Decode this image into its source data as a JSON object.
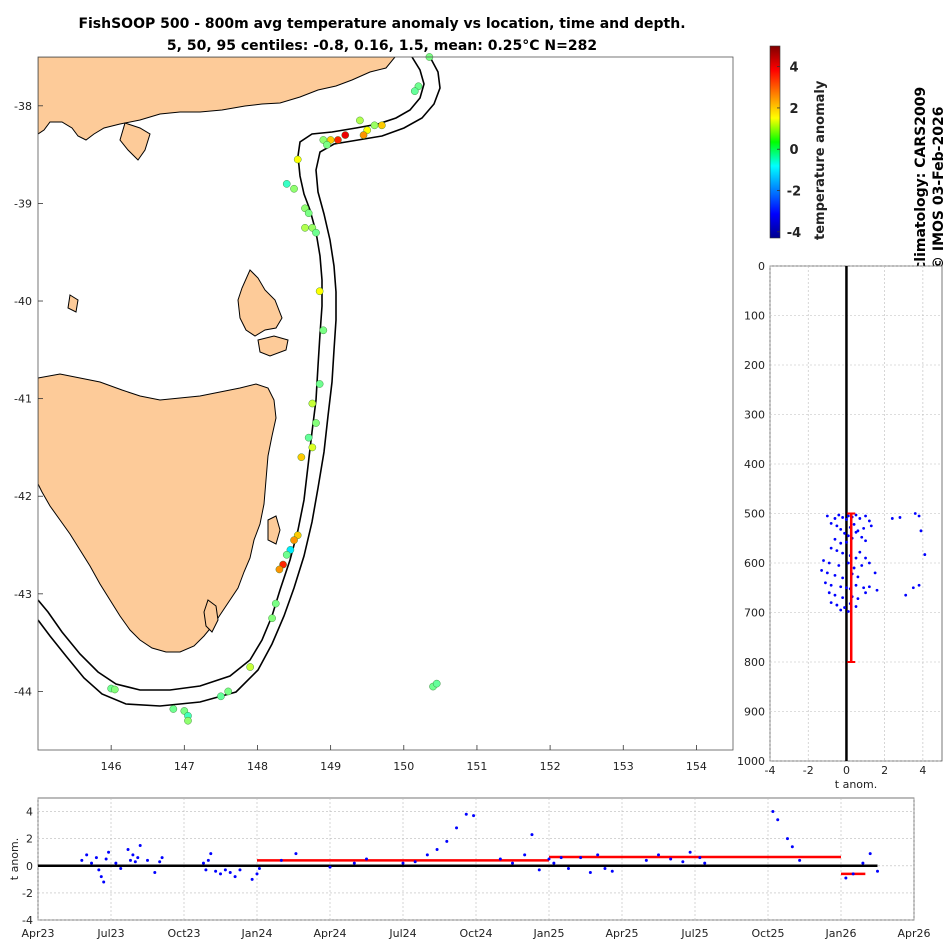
{
  "title": {
    "line1": "FishSOOP 500 - 800m avg temperature anomaly vs location, time and depth.",
    "line2": "5, 50, 95 centiles: -0.8, 0.16, 1.5, mean: 0.25°C N=282"
  },
  "side_text": {
    "climatology": "climatology: CARS2009",
    "copyright": "© IMOS 03-Feb-2026"
  },
  "colorbar": {
    "label": "temperature anomaly",
    "range": [
      -4.3,
      5
    ],
    "ticks": [
      "4",
      "2",
      "0",
      "-2",
      "-4"
    ],
    "tick_values": [
      4,
      2,
      0,
      -2,
      -4
    ]
  },
  "chart_data": [
    {
      "type": "scatter",
      "name": "map",
      "xlim": [
        145,
        154.5
      ],
      "ylim": [
        -44.6,
        -37.5
      ],
      "xticks": [
        "146",
        "147",
        "148",
        "149",
        "150",
        "151",
        "152",
        "153",
        "154"
      ],
      "xtick_values": [
        146,
        147,
        148,
        149,
        150,
        151,
        152,
        153,
        154
      ],
      "yticks": [
        "-38",
        "-39",
        "-40",
        "-41",
        "-42",
        "-43",
        "-44"
      ],
      "ytick_values": [
        -38,
        -39,
        -40,
        -41,
        -42,
        -43,
        -44
      ],
      "points": [
        [
          150.35,
          -37.5,
          0.3
        ],
        [
          150.2,
          -37.8,
          0.2
        ],
        [
          150.15,
          -37.85,
          0.1
        ],
        [
          149.7,
          -38.2,
          2.0
        ],
        [
          149.6,
          -38.2,
          0.6
        ],
        [
          149.5,
          -38.25,
          1.5
        ],
        [
          149.45,
          -38.3,
          2.5
        ],
        [
          149.4,
          -38.15,
          0.8
        ],
        [
          149.2,
          -38.3,
          4.0
        ],
        [
          149.1,
          -38.35,
          3.5
        ],
        [
          149.0,
          -38.35,
          2.0
        ],
        [
          148.9,
          -38.35,
          0.5
        ],
        [
          148.95,
          -38.4,
          0.3
        ],
        [
          148.55,
          -38.55,
          1.5
        ],
        [
          148.4,
          -38.8,
          -0.3
        ],
        [
          148.5,
          -38.85,
          0.5
        ],
        [
          148.65,
          -39.05,
          0.5
        ],
        [
          148.7,
          -39.1,
          0.3
        ],
        [
          148.75,
          -39.25,
          0.6
        ],
        [
          148.8,
          -39.3,
          0.2
        ],
        [
          148.65,
          -39.25,
          0.8
        ],
        [
          148.85,
          -39.9,
          1.5
        ],
        [
          148.9,
          -40.3,
          0.3
        ],
        [
          148.85,
          -40.85,
          0.2
        ],
        [
          148.75,
          -41.05,
          1.0
        ],
        [
          148.8,
          -41.25,
          0.4
        ],
        [
          148.7,
          -41.4,
          0.1
        ],
        [
          148.75,
          -41.5,
          1.2
        ],
        [
          148.6,
          -41.6,
          2.0
        ],
        [
          148.55,
          -42.4,
          2.0
        ],
        [
          148.5,
          -42.45,
          2.5
        ],
        [
          148.45,
          -42.55,
          -1.0
        ],
        [
          148.4,
          -42.6,
          0.2
        ],
        [
          148.35,
          -42.7,
          3.5
        ],
        [
          148.3,
          -42.75,
          2.5
        ],
        [
          148.25,
          -43.1,
          0.3
        ],
        [
          148.2,
          -43.25,
          0.4
        ],
        [
          147.9,
          -43.75,
          1.0
        ],
        [
          147.6,
          -44.0,
          0.3
        ],
        [
          147.5,
          -44.05,
          0.1
        ],
        [
          146.0,
          -43.97,
          0.2
        ],
        [
          146.05,
          -43.98,
          0.4
        ],
        [
          146.85,
          -44.18,
          0.2
        ],
        [
          147.0,
          -44.2,
          0.3
        ],
        [
          147.05,
          -44.25,
          -0.2
        ],
        [
          147.05,
          -44.3,
          0.5
        ],
        [
          150.4,
          -43.95,
          0.2
        ],
        [
          150.45,
          -43.92,
          0.1
        ]
      ]
    },
    {
      "type": "scatter",
      "name": "depth_profile",
      "xlabel": "t anom.",
      "xlim": [
        -4,
        5
      ],
      "ylim": [
        0,
        1000
      ],
      "xticks": [
        "-4",
        "-2",
        "0",
        "2",
        "4"
      ],
      "xtick_values": [
        -4,
        -2,
        0,
        2,
        4
      ],
      "yticks": [
        "0",
        "100",
        "200",
        "300",
        "400",
        "500",
        "600",
        "700",
        "800",
        "900",
        "1000"
      ],
      "ytick_values": [
        0,
        100,
        200,
        300,
        400,
        500,
        600,
        700,
        800,
        900,
        1000
      ],
      "mean_profile": {
        "x": 0.25,
        "depth_top": 500,
        "depth_bottom": 800
      },
      "points": [
        [
          -1.0,
          505
        ],
        [
          -0.6,
          510
        ],
        [
          -0.4,
          503
        ],
        [
          -0.2,
          508
        ],
        [
          0.0,
          512
        ],
        [
          0.1,
          505
        ],
        [
          0.3,
          507
        ],
        [
          0.5,
          503
        ],
        [
          0.7,
          510
        ],
        [
          1.0,
          505
        ],
        [
          1.2,
          515
        ],
        [
          -0.8,
          520
        ],
        [
          -0.5,
          525
        ],
        [
          -0.3,
          532
        ],
        [
          0.2,
          528
        ],
        [
          0.4,
          522
        ],
        [
          0.6,
          535
        ],
        [
          0.9,
          530
        ],
        [
          1.3,
          525
        ],
        [
          -0.1,
          540
        ],
        [
          0.1,
          545
        ],
        [
          0.3,
          550
        ],
        [
          0.5,
          538
        ],
        [
          0.8,
          548
        ],
        [
          -0.6,
          552
        ],
        [
          -0.3,
          560
        ],
        [
          1.0,
          555
        ],
        [
          0.0,
          558
        ],
        [
          2.4,
          510
        ],
        [
          2.8,
          508
        ],
        [
          3.6,
          500
        ],
        [
          3.8,
          505
        ],
        [
          3.9,
          535
        ],
        [
          4.1,
          583
        ],
        [
          -0.8,
          570
        ],
        [
          -0.5,
          575
        ],
        [
          -0.2,
          580
        ],
        [
          0.2,
          585
        ],
        [
          0.5,
          590
        ],
        [
          0.7,
          578
        ],
        [
          1.0,
          590
        ],
        [
          -1.2,
          595
        ],
        [
          -0.9,
          600
        ],
        [
          -0.4,
          605
        ],
        [
          0.1,
          600
        ],
        [
          0.4,
          610
        ],
        [
          0.8,
          605
        ],
        [
          1.2,
          600
        ],
        [
          -1.3,
          615
        ],
        [
          -1.0,
          620
        ],
        [
          -0.6,
          625
        ],
        [
          -0.2,
          630
        ],
        [
          0.3,
          622
        ],
        [
          0.6,
          628
        ],
        [
          1.5,
          620
        ],
        [
          -1.1,
          640
        ],
        [
          -0.8,
          645
        ],
        [
          -0.3,
          648
        ],
        [
          0.0,
          650
        ],
        [
          0.2,
          652
        ],
        [
          0.5,
          645
        ],
        [
          0.9,
          650
        ],
        [
          1.2,
          648
        ],
        [
          1.6,
          655
        ],
        [
          3.1,
          665
        ],
        [
          3.5,
          650
        ],
        [
          3.8,
          645
        ],
        [
          -0.9,
          660
        ],
        [
          -0.6,
          665
        ],
        [
          -0.2,
          670
        ],
        [
          0.3,
          668
        ],
        [
          0.6,
          672
        ],
        [
          1.0,
          660
        ],
        [
          -0.8,
          680
        ],
        [
          -0.5,
          685
        ],
        [
          -0.1,
          690
        ],
        [
          0.2,
          682
        ],
        [
          0.5,
          688
        ],
        [
          -0.3,
          695
        ],
        [
          0.1,
          698
        ]
      ]
    },
    {
      "type": "scatter",
      "name": "time_series",
      "ylabel": "t anom.",
      "xlim": [
        0,
        36
      ],
      "ylim": [
        -4,
        5
      ],
      "xticks": [
        "Apr23",
        "Jul23",
        "Oct23",
        "Jan24",
        "Apr24",
        "Jul24",
        "Oct24",
        "Jan25",
        "Apr25",
        "Jul25",
        "Oct25",
        "Jan26",
        "Apr26"
      ],
      "xtick_values": [
        0,
        3,
        6,
        9,
        12,
        15,
        18,
        21,
        24,
        27,
        30,
        33,
        36
      ],
      "yticks": [
        "4",
        "2",
        "0",
        "-2",
        "-4"
      ],
      "ytick_values": [
        4,
        2,
        0,
        -2,
        -4
      ],
      "means": [
        {
          "x0": 9,
          "x1": 21,
          "y": 0.4
        },
        {
          "x0": 21,
          "x1": 33,
          "y": 0.65
        },
        {
          "x0": 33,
          "x1": 34,
          "y": -0.6
        }
      ],
      "points": [
        [
          1.8,
          0.4
        ],
        [
          2.0,
          0.8
        ],
        [
          2.2,
          0.2
        ],
        [
          2.4,
          0.6
        ],
        [
          2.5,
          -0.3
        ],
        [
          2.6,
          -0.8
        ],
        [
          2.7,
          -1.2
        ],
        [
          2.8,
          0.5
        ],
        [
          2.9,
          1.0
        ],
        [
          3.2,
          0.2
        ],
        [
          3.4,
          -0.2
        ],
        [
          3.7,
          1.2
        ],
        [
          3.8,
          0.4
        ],
        [
          3.9,
          0.8
        ],
        [
          4.0,
          0.3
        ],
        [
          4.1,
          0.6
        ],
        [
          4.2,
          1.5
        ],
        [
          4.5,
          0.4
        ],
        [
          4.8,
          -0.5
        ],
        [
          5.0,
          0.3
        ],
        [
          5.1,
          0.6
        ],
        [
          6.8,
          0.2
        ],
        [
          6.9,
          -0.3
        ],
        [
          7.0,
          0.4
        ],
        [
          7.1,
          0.9
        ],
        [
          7.3,
          -0.4
        ],
        [
          7.5,
          -0.6
        ],
        [
          7.7,
          -0.3
        ],
        [
          7.9,
          -0.5
        ],
        [
          8.1,
          -0.8
        ],
        [
          8.3,
          -0.3
        ],
        [
          8.8,
          -1.0
        ],
        [
          9.0,
          -0.6
        ],
        [
          9.1,
          -0.2
        ],
        [
          10.0,
          0.4
        ],
        [
          10.6,
          0.9
        ],
        [
          12.0,
          -0.1
        ],
        [
          13.0,
          0.2
        ],
        [
          13.5,
          0.5
        ],
        [
          15.0,
          0.2
        ],
        [
          15.5,
          0.3
        ],
        [
          16.0,
          0.8
        ],
        [
          16.4,
          1.2
        ],
        [
          16.8,
          1.8
        ],
        [
          17.2,
          2.8
        ],
        [
          17.6,
          3.8
        ],
        [
          17.9,
          3.7
        ],
        [
          19.0,
          0.5
        ],
        [
          19.5,
          0.2
        ],
        [
          20.0,
          0.8
        ],
        [
          20.3,
          2.3
        ],
        [
          20.6,
          -0.3
        ],
        [
          21.0,
          0.5
        ],
        [
          21.2,
          0.2
        ],
        [
          21.5,
          0.6
        ],
        [
          21.8,
          -0.2
        ],
        [
          22.3,
          0.6
        ],
        [
          22.7,
          -0.5
        ],
        [
          23.0,
          0.8
        ],
        [
          23.3,
          -0.2
        ],
        [
          23.6,
          -0.4
        ],
        [
          25.0,
          0.4
        ],
        [
          25.5,
          0.8
        ],
        [
          26.0,
          0.5
        ],
        [
          26.5,
          0.3
        ],
        [
          26.8,
          1.0
        ],
        [
          27.2,
          0.6
        ],
        [
          27.4,
          0.2
        ],
        [
          30.2,
          4.0
        ],
        [
          30.4,
          3.4
        ],
        [
          30.8,
          2.0
        ],
        [
          31.0,
          1.4
        ],
        [
          31.3,
          0.4
        ],
        [
          33.2,
          -0.9
        ],
        [
          33.5,
          -0.6
        ],
        [
          33.9,
          0.2
        ],
        [
          34.2,
          0.9
        ],
        [
          34.5,
          -0.4
        ]
      ]
    }
  ]
}
